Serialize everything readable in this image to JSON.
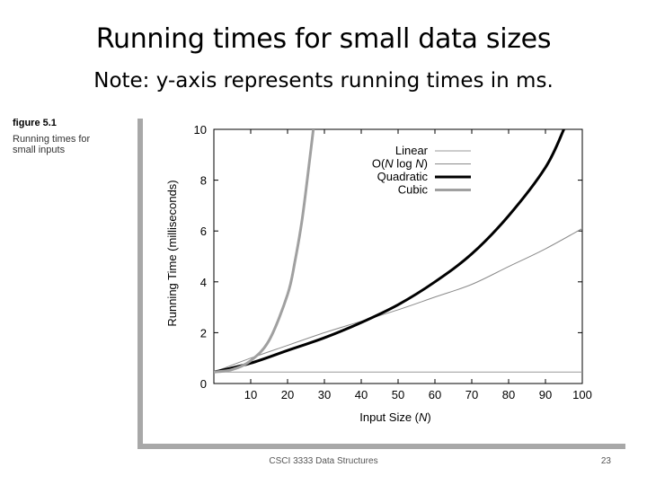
{
  "slide": {
    "title": "Running times for small data sizes",
    "note": "Note: y-axis represents running times in ms.",
    "footer": "CSCI 3333 Data Structures",
    "page_number": "23"
  },
  "figure": {
    "number": "figure 5.1",
    "caption": "Running times for small inputs"
  },
  "chart_data": {
    "type": "line",
    "xlabel": "Input Size (N)",
    "ylabel": "Running Time (milliseconds)",
    "xlim": [
      0,
      100
    ],
    "ylim": [
      0,
      10
    ],
    "xticks": [
      10,
      20,
      30,
      40,
      50,
      60,
      70,
      80,
      90,
      100
    ],
    "yticks": [
      0,
      2,
      4,
      6,
      8,
      10
    ],
    "legend_position": "top-right",
    "grid": false,
    "series": [
      {
        "name": "Linear",
        "color": "#9a9a9a",
        "style": "thin",
        "x": [
          0,
          100
        ],
        "y": [
          0.45,
          0.45
        ]
      },
      {
        "name": "O(N log N)",
        "color": "#8a8a8a",
        "style": "thin",
        "x": [
          0,
          10,
          20,
          30,
          40,
          50,
          60,
          70,
          80,
          90,
          100
        ],
        "y": [
          0.45,
          1.0,
          1.5,
          2.0,
          2.45,
          2.9,
          3.4,
          3.9,
          4.6,
          5.3,
          6.1
        ]
      },
      {
        "name": "Quadratic",
        "color": "#000000",
        "style": "thick",
        "x": [
          0,
          10,
          20,
          30,
          40,
          50,
          60,
          70,
          80,
          90,
          95
        ],
        "y": [
          0.45,
          0.8,
          1.3,
          1.8,
          2.4,
          3.1,
          4.0,
          5.1,
          6.6,
          8.5,
          10
        ]
      },
      {
        "name": "Cubic",
        "color": "#a0a0a0",
        "style": "thick",
        "x": [
          0,
          5,
          10,
          15,
          20,
          22,
          24,
          26,
          27
        ],
        "y": [
          0.45,
          0.55,
          0.9,
          1.7,
          3.5,
          4.8,
          6.5,
          8.8,
          10
        ]
      }
    ]
  }
}
